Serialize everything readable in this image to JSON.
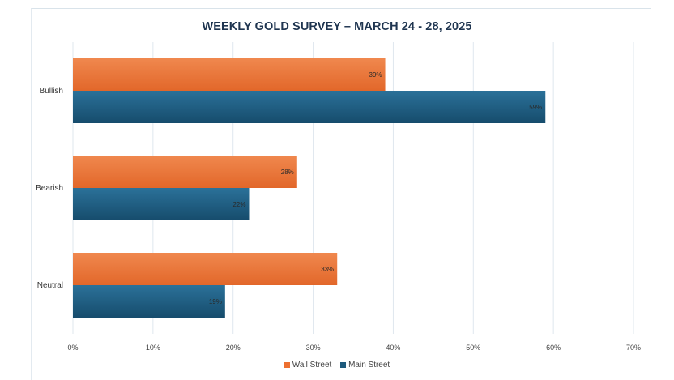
{
  "chart_data": {
    "type": "bar",
    "orientation": "horizontal",
    "title": "WEEKLY GOLD SURVEY – MARCH 24 - 28, 2025",
    "categories": [
      "Bullish",
      "Bearish",
      "Neutral"
    ],
    "series": [
      {
        "name": "Wall Street",
        "values": [
          39,
          28,
          33
        ],
        "labels": [
          "39%",
          "28%",
          "33%"
        ],
        "color": "#ed7031"
      },
      {
        "name": "Main Street",
        "values": [
          59,
          22,
          19
        ],
        "labels": [
          "59%",
          "22%",
          "19%"
        ],
        "color": "#1d5a7c"
      }
    ],
    "xlim": [
      0,
      70
    ],
    "xticks": [
      "0%",
      "10%",
      "20%",
      "30%",
      "40%",
      "50%",
      "60%",
      "70%"
    ],
    "xlabel": "",
    "ylabel": "",
    "grid": "vertical",
    "legend_position": "bottom"
  }
}
